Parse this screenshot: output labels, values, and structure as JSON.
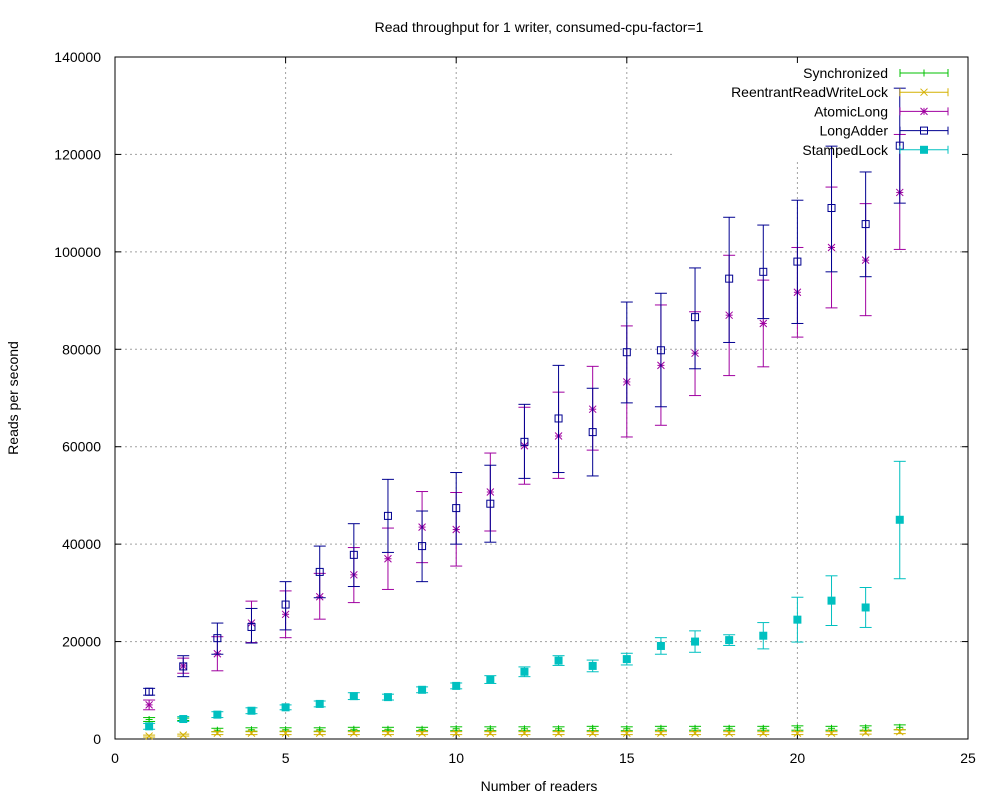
{
  "chart_data": {
    "type": "scatter",
    "title": "Read throughput for 1 writer, consumed-cpu-factor=1",
    "xlabel": "Number of readers",
    "ylabel": "Reads per second",
    "xlim": [
      0,
      25
    ],
    "ylim": [
      0,
      140000
    ],
    "xticks": [
      0,
      5,
      10,
      15,
      20,
      25
    ],
    "yticks": [
      0,
      20000,
      40000,
      60000,
      80000,
      100000,
      120000,
      140000
    ],
    "xtick_labels": [
      "0",
      "5",
      "10",
      "15",
      "20",
      "25"
    ],
    "ytick_labels": [
      "0",
      "20000",
      "40000",
      "60000",
      "80000",
      "100000",
      "120000",
      "140000"
    ],
    "grid": true,
    "legend_position": "top-right",
    "series": [
      {
        "name": "Synchronized",
        "color": "#00c000",
        "marker": "plus",
        "x": [
          1,
          2,
          3,
          4,
          5,
          6,
          7,
          8,
          9,
          10,
          11,
          12,
          13,
          14,
          15,
          16,
          17,
          18,
          19,
          20,
          21,
          22,
          23
        ],
        "y": [
          4000,
          4000,
          1800,
          1900,
          1900,
          1900,
          2000,
          2000,
          2000,
          2100,
          2100,
          2100,
          2100,
          2200,
          2100,
          2200,
          2200,
          2200,
          2200,
          2300,
          2200,
          2300,
          2400
        ],
        "err_low": [
          3600,
          3800,
          1500,
          1600,
          1600,
          1600,
          1700,
          1700,
          1700,
          1700,
          1700,
          1700,
          1700,
          1700,
          1700,
          1800,
          1800,
          1800,
          1800,
          1800,
          1800,
          1800,
          1900
        ],
        "err_high": [
          4400,
          4300,
          2200,
          2300,
          2300,
          2300,
          2400,
          2400,
          2400,
          2500,
          2500,
          2500,
          2500,
          2600,
          2500,
          2600,
          2600,
          2600,
          2600,
          2700,
          2600,
          2700,
          2900
        ]
      },
      {
        "name": "ReentrantReadWriteLock",
        "color": "#d4b000",
        "marker": "cross",
        "x": [
          1,
          2,
          3,
          4,
          5,
          6,
          7,
          8,
          9,
          10,
          11,
          12,
          13,
          14,
          15,
          16,
          17,
          18,
          19,
          20,
          21,
          22,
          23
        ],
        "y": [
          600,
          800,
          1200,
          1200,
          1200,
          1200,
          1200,
          1200,
          1200,
          1200,
          1200,
          1200,
          1200,
          1200,
          1200,
          1200,
          1200,
          1200,
          1200,
          1200,
          1200,
          1300,
          1500
        ],
        "err_low": [
          400,
          600,
          900,
          900,
          900,
          900,
          900,
          900,
          900,
          900,
          900,
          900,
          900,
          900,
          900,
          900,
          900,
          900,
          900,
          900,
          900,
          1000,
          1100
        ],
        "err_high": [
          800,
          1000,
          1500,
          1500,
          1500,
          1500,
          1500,
          1500,
          1500,
          1500,
          1500,
          1500,
          1500,
          1500,
          1500,
          1500,
          1500,
          1500,
          1500,
          1500,
          1500,
          1600,
          1900
        ]
      },
      {
        "name": "AtomicLong",
        "color": "#a000a0",
        "marker": "star",
        "x": [
          1,
          2,
          3,
          4,
          5,
          6,
          7,
          8,
          9,
          10,
          11,
          12,
          13,
          14,
          15,
          16,
          17,
          18,
          19,
          20,
          21,
          22,
          23
        ],
        "y": [
          7000,
          15000,
          17500,
          23800,
          25600,
          29200,
          33700,
          37000,
          43500,
          43000,
          50700,
          60200,
          62200,
          67700,
          73300,
          76700,
          79200,
          87000,
          85300,
          91700,
          100900,
          98300,
          112200
        ],
        "err_low": [
          6000,
          13500,
          14000,
          19800,
          20800,
          24600,
          28000,
          30700,
          36200,
          35500,
          42700,
          52300,
          53500,
          59300,
          62000,
          64400,
          70500,
          74600,
          76400,
          82500,
          88500,
          86900,
          100500
        ],
        "err_high": [
          8000,
          16600,
          21000,
          28300,
          30400,
          34000,
          39300,
          43300,
          50800,
          50600,
          58700,
          68100,
          71200,
          76500,
          84800,
          89100,
          87700,
          99300,
          94200,
          100900,
          113300,
          109900,
          124100
        ]
      },
      {
        "name": "LongAdder",
        "color": "#000090",
        "marker": "box",
        "x": [
          1,
          2,
          3,
          4,
          5,
          6,
          7,
          8,
          9,
          10,
          11,
          12,
          13,
          14,
          15,
          16,
          17,
          18,
          19,
          20,
          21,
          22,
          23
        ],
        "y": [
          9700,
          14900,
          20700,
          23000,
          27600,
          34300,
          37800,
          45800,
          39600,
          47400,
          48300,
          61000,
          65800,
          63000,
          79400,
          79800,
          86600,
          94500,
          95900,
          98000,
          109000,
          105700,
          121800
        ],
        "err_low": [
          9000,
          12800,
          17400,
          19700,
          22400,
          29000,
          31300,
          38300,
          32300,
          40000,
          40400,
          53500,
          54700,
          54000,
          69000,
          68200,
          76000,
          81400,
          86300,
          85300,
          95900,
          94900,
          110000
        ],
        "err_high": [
          10400,
          17100,
          23800,
          26800,
          32300,
          39600,
          44200,
          53300,
          46800,
          54700,
          56200,
          68700,
          76700,
          72000,
          89700,
          91500,
          96700,
          107100,
          105500,
          110600,
          121700,
          116400,
          133600
        ]
      },
      {
        "name": "StampedLock",
        "color": "#00c0c0",
        "marker": "filled-box",
        "x": [
          1,
          2,
          3,
          4,
          5,
          6,
          7,
          8,
          9,
          10,
          11,
          12,
          13,
          14,
          15,
          16,
          17,
          18,
          19,
          20,
          21,
          22,
          23
        ],
        "y": [
          2600,
          4100,
          5000,
          5800,
          6500,
          7200,
          8800,
          8600,
          10100,
          10900,
          12200,
          13800,
          16100,
          15000,
          16400,
          19100,
          20000,
          20300,
          21200,
          24500,
          28400,
          27000,
          45000
        ],
        "err_low": [
          2000,
          3600,
          4400,
          5200,
          6000,
          6600,
          8100,
          8000,
          9500,
          10300,
          11400,
          12800,
          15100,
          13800,
          15200,
          17400,
          17800,
          19200,
          18500,
          19900,
          23300,
          22900,
          32900
        ],
        "err_high": [
          3200,
          4600,
          5600,
          6400,
          7000,
          7800,
          9500,
          9200,
          10700,
          11500,
          13000,
          14800,
          17100,
          16200,
          17600,
          20800,
          22200,
          21400,
          23900,
          29100,
          33500,
          31100,
          57000
        ]
      }
    ]
  }
}
